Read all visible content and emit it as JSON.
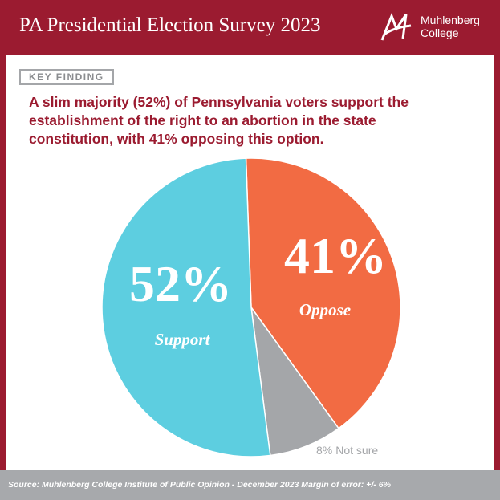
{
  "header": {
    "title": "PA Presidential Election Survey 2023",
    "logo": [
      "Muhlenberg",
      "College"
    ]
  },
  "key_finding": {
    "label": "KEY FINDING",
    "text": "A slim majority (52%) of Pennsylvania voters support the establishment of the right to an abortion in the state constitution, with 41% opposing this option."
  },
  "chart_data": {
    "type": "pie",
    "categories": [
      "Oppose",
      "Not sure",
      "Support"
    ],
    "values": [
      41,
      8,
      52
    ],
    "value_labels": [
      "41%",
      "8%",
      "52%"
    ],
    "colors": [
      "#f26b43",
      "#a4a6a9",
      "#5dcee0"
    ]
  },
  "footer": {
    "source": "Source: Muhlenberg College Institute of Public Opinion - December 2023 Margin of error: +/- 6%"
  }
}
